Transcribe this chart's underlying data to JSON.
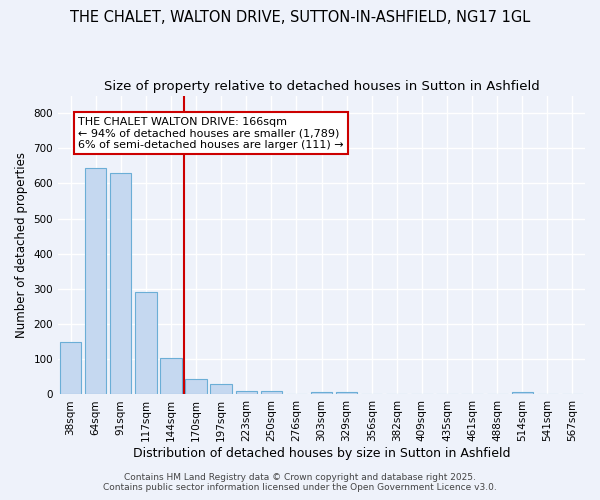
{
  "title": "THE CHALET, WALTON DRIVE, SUTTON-IN-ASHFIELD, NG17 1GL",
  "subtitle": "Size of property relative to detached houses in Sutton in Ashfield",
  "xlabel": "Distribution of detached houses by size in Sutton in Ashfield",
  "ylabel": "Number of detached properties",
  "bar_labels": [
    "38sqm",
    "64sqm",
    "91sqm",
    "117sqm",
    "144sqm",
    "170sqm",
    "197sqm",
    "223sqm",
    "250sqm",
    "276sqm",
    "303sqm",
    "329sqm",
    "356sqm",
    "382sqm",
    "409sqm",
    "435sqm",
    "461sqm",
    "488sqm",
    "514sqm",
    "541sqm",
    "567sqm"
  ],
  "bar_values": [
    150,
    643,
    630,
    292,
    103,
    43,
    29,
    10,
    10,
    0,
    7,
    7,
    0,
    0,
    0,
    0,
    0,
    0,
    7,
    0,
    0
  ],
  "bar_color": "#c5d8f0",
  "bar_edge_color": "#6baed6",
  "vline_x_index": 5,
  "vline_color": "#cc0000",
  "annotation_text": "THE CHALET WALTON DRIVE: 166sqm\n← 94% of detached houses are smaller (1,789)\n6% of semi-detached houses are larger (111) →",
  "annotation_box_color": "#ffffff",
  "annotation_box_edge": "#cc0000",
  "ylim": [
    0,
    850
  ],
  "yticks": [
    0,
    100,
    200,
    300,
    400,
    500,
    600,
    700,
    800
  ],
  "footer_lines": [
    "Contains HM Land Registry data © Crown copyright and database right 2025.",
    "Contains public sector information licensed under the Open Government Licence v3.0."
  ],
  "bg_color": "#eef2fa",
  "grid_color": "#ffffff",
  "title_fontsize": 10.5,
  "subtitle_fontsize": 9.5,
  "tick_fontsize": 7.5,
  "ylabel_fontsize": 8.5,
  "xlabel_fontsize": 9,
  "footer_fontsize": 6.5,
  "ann_fontsize": 8
}
